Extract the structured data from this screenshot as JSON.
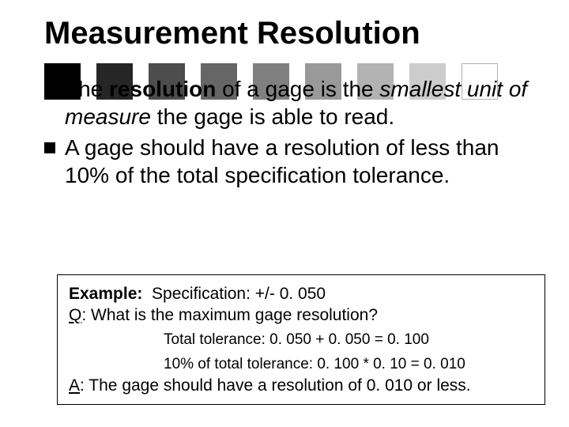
{
  "title": "Measurement Resolution",
  "gray_bars": {
    "colors": [
      "#000000",
      "#262626",
      "#4d4d4d",
      "#666666",
      "#808080",
      "#999999",
      "#b3b3b3",
      "#cccccc",
      "#e6e6e6"
    ],
    "outline_last_color": "#b0b0b0"
  },
  "bullets": [
    {
      "pre": "The ",
      "bold": "resolution",
      "mid": " of a gage is the ",
      "italic": "smallest unit of measure",
      "post": " the gage is able to read."
    },
    {
      "text": "A gage should have a resolution of less than 10% of the total specification tolerance."
    }
  ],
  "example": {
    "label": "Example:",
    "spec": "  Specification: +/- 0. 050",
    "q_label": "Q",
    "q_text": ": What is the maximum gage resolution?",
    "calc1": "Total tolerance: 0. 050 + 0. 050 = 0. 100",
    "calc2": "10% of total tolerance: 0. 100 * 0. 10 = 0. 010",
    "a_label": "A",
    "a_text": ": The gage should have a resolution of 0. 010 or less."
  }
}
